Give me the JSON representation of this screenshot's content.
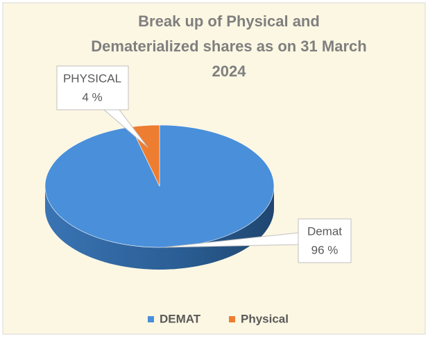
{
  "chart_data": {
    "type": "pie3d",
    "title": [
      "Break up of Physical and",
      "Dematerialized shares as on 31 March",
      "2024"
    ],
    "categories": [
      "DEMAT",
      "Physical"
    ],
    "values": [
      96,
      4
    ],
    "value_labels": [
      "96 %",
      "4 %"
    ],
    "label_names": [
      "Demat",
      "PHYSICAL"
    ],
    "colors": [
      "#4a8fd9",
      "#ed7d31"
    ],
    "legend": "bottom"
  }
}
